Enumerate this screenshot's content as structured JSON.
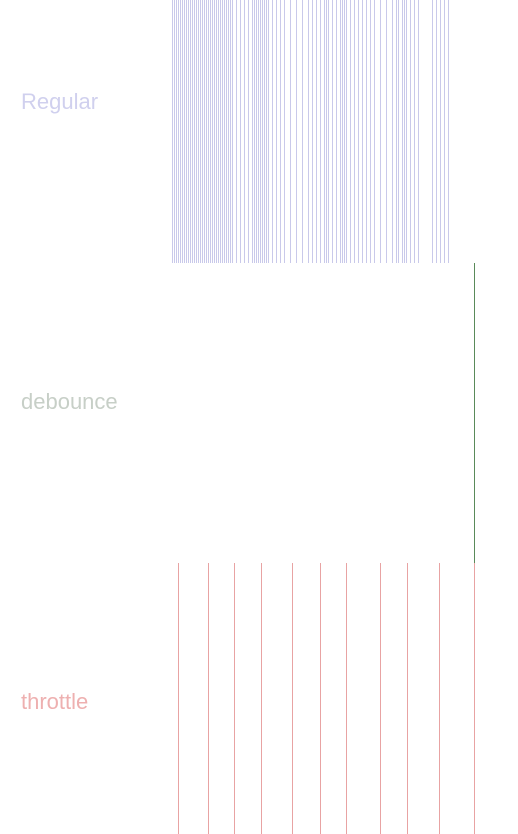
{
  "rows": [
    {
      "id": "regular",
      "label": "Regular",
      "color": "#c9c9ea",
      "label_color": "#d0d0ee",
      "events": [
        172,
        174,
        176,
        178,
        180,
        182,
        184,
        186,
        188,
        190,
        192,
        194,
        196,
        198,
        200,
        202,
        204,
        206,
        208,
        210,
        212,
        214,
        216,
        218,
        220,
        222,
        224,
        226,
        228,
        230,
        232,
        236,
        240,
        244,
        248,
        252,
        254,
        256,
        258,
        260,
        262,
        264,
        266,
        268,
        272,
        276,
        280,
        284,
        290,
        296,
        302,
        308,
        312,
        316,
        320,
        324,
        326,
        328,
        332,
        336,
        340,
        342,
        344,
        346,
        350,
        354,
        358,
        362,
        366,
        370,
        374,
        380,
        386,
        392,
        396,
        398,
        402,
        404,
        406,
        410,
        414,
        418,
        432,
        436,
        440,
        444,
        448
      ]
    },
    {
      "id": "debounce",
      "label": "debounce",
      "color": "#5a8a5a",
      "label_color": "#c7cfc7",
      "events": [
        474
      ]
    },
    {
      "id": "throttle",
      "label": "throttle",
      "color": "#e8a3a3",
      "label_color": "#eeb0b0",
      "events": [
        178,
        208,
        234,
        261,
        292,
        320,
        346,
        380,
        407,
        439,
        474
      ]
    }
  ]
}
